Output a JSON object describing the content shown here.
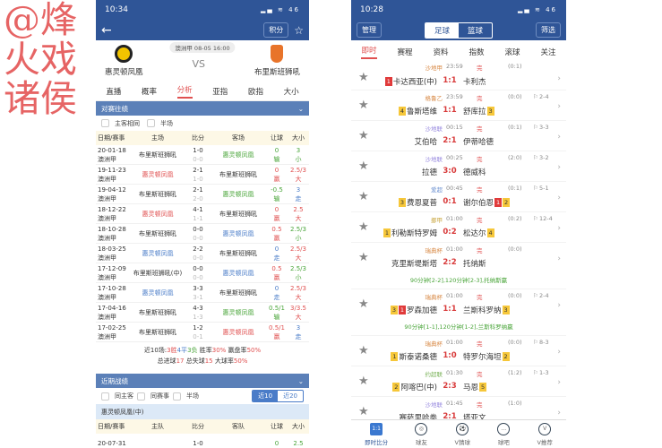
{
  "watermark": "@烽火戏诸侯",
  "left": {
    "status_time": "10:34",
    "status_icons": "▂▄ ≋ 46",
    "standings_btn": "积分",
    "match_info": "澳洲甲 08-05 16:00",
    "home_team": "惠灵顿凤凰",
    "away_team": "布里斯班狮吼",
    "vs": "VS",
    "tabs": [
      "直播",
      "概率",
      "分析",
      "亚指",
      "欧指",
      "大小"
    ],
    "active_tab": 2,
    "h2h": {
      "title": "对赛往绩",
      "filters": [
        "主客相同",
        "半场"
      ],
      "headers": [
        "日期/赛事",
        "主场",
        "比分",
        "客场",
        "让球",
        "大小"
      ],
      "rows": [
        {
          "date": "20-01-18",
          "league": "澳洲甲",
          "home": "布里斯班狮吼",
          "hc": "k",
          "score": "1-0",
          "half": "0-0",
          "away": "惠灵顿凤凰",
          "ac": "g",
          "hcp": "0",
          "hres": "输",
          "hcol": "g",
          "ou": "3",
          "ores": "小",
          "ocol": "g"
        },
        {
          "date": "19-11-23",
          "league": "澳洲甲",
          "home": "惠灵顿凤凰",
          "hc": "r",
          "score": "2-1",
          "half": "1-0",
          "away": "布里斯班狮吼",
          "ac": "k",
          "hcp": "0",
          "hres": "赢",
          "hcol": "r",
          "ou": "2.5/3",
          "ores": "大",
          "ocol": "r"
        },
        {
          "date": "19-04-12",
          "league": "澳洲甲",
          "home": "布里斯班狮吼",
          "hc": "k",
          "score": "2-1",
          "half": "2-0",
          "away": "惠灵顿凤凰",
          "ac": "g",
          "hcp": "-0.5",
          "hres": "输",
          "hcol": "g",
          "ou": "3",
          "ores": "走",
          "ocol": "b"
        },
        {
          "date": "18-12-22",
          "league": "澳洲甲",
          "home": "惠灵顿凤凰",
          "hc": "r",
          "score": "4-1",
          "half": "1-1",
          "away": "布里斯班狮吼",
          "ac": "k",
          "hcp": "0",
          "hres": "赢",
          "hcol": "r",
          "ou": "2.5",
          "ores": "大",
          "ocol": "r"
        },
        {
          "date": "18-10-28",
          "league": "澳洲甲",
          "home": "布里斯班狮吼",
          "hc": "k",
          "score": "0-0",
          "half": "0-0",
          "away": "惠灵顿凤凰",
          "ac": "b",
          "hcp": "0.5",
          "hres": "赢",
          "hcol": "r",
          "ou": "2.5/3",
          "ores": "小",
          "ocol": "g"
        },
        {
          "date": "18-03-25",
          "league": "澳洲甲",
          "home": "惠灵顿凤凰",
          "hc": "b",
          "score": "2-2",
          "half": "0-0",
          "away": "布里斯班狮吼",
          "ac": "k",
          "hcp": "0",
          "hres": "走",
          "hcol": "b",
          "ou": "2.5/3",
          "ores": "大",
          "ocol": "r"
        },
        {
          "date": "17-12-09",
          "league": "澳洲甲",
          "home": "布里斯班狮吼(中)",
          "hc": "k",
          "score": "0-0",
          "half": "0-0",
          "away": "惠灵顿凤凰",
          "ac": "b",
          "hcp": "0.5",
          "hres": "赢",
          "hcol": "r",
          "ou": "2.5/3",
          "ores": "小",
          "ocol": "g"
        },
        {
          "date": "17-10-28",
          "league": "澳洲甲",
          "home": "惠灵顿凤凰",
          "hc": "b",
          "score": "3-3",
          "half": "3-1",
          "away": "布里斯班狮吼",
          "ac": "k",
          "hcp": "0",
          "hres": "走",
          "hcol": "b",
          "ou": "2.5/3",
          "ores": "大",
          "ocol": "r"
        },
        {
          "date": "17-04-16",
          "league": "澳洲甲",
          "home": "布里斯班狮吼",
          "hc": "k",
          "score": "4-3",
          "half": "1-3",
          "away": "惠灵顿凤凰",
          "ac": "g",
          "hcp": "0.5/1",
          "hres": "输",
          "hcol": "g",
          "ou": "3/3.5",
          "ores": "大",
          "ocol": "r"
        },
        {
          "date": "17-02-25",
          "league": "澳洲甲",
          "home": "布里斯班狮吼",
          "hc": "k",
          "score": "1-2",
          "half": "0-1",
          "away": "惠灵顿凤凰",
          "ac": "r",
          "hcp": "0.5/1",
          "hres": "赢",
          "hcol": "r",
          "ou": "3",
          "ores": "走",
          "ocol": "b"
        }
      ],
      "summary": {
        "prefix": "近10场:",
        "wins": "3胜",
        "draws": "4平",
        "losses": "3负",
        "winrate_label": " 胜率",
        "winrate": "30%",
        "cover_label": " 赢盘率",
        "cover": "50%",
        "goals_label": "总进球",
        "goals": "17",
        "conceded_label": " 总失球",
        "conceded": "15",
        "over_label": " 大球率",
        "over": "50%"
      }
    },
    "recent": {
      "title": "近期战绩",
      "filters": [
        "同主客",
        "同赛事",
        "半场"
      ],
      "seg": [
        "近10",
        "近20"
      ],
      "team_label": "惠灵顿凤凰(中)",
      "headers": [
        "日期/赛事",
        "主队",
        "比分",
        "客队",
        "让球",
        "大小"
      ],
      "first_row": {
        "date": "20-07-31",
        "score": "1-0",
        "hcp": "0",
        "ou": "2.5"
      }
    }
  },
  "right": {
    "status_time": "10:28",
    "status_icons": "▂▄ ≋ 46",
    "manage": "管理",
    "sports": [
      "足球",
      "篮球"
    ],
    "filter": "筛选",
    "tabs": [
      "即时",
      "赛程",
      "资料",
      "指数",
      "滚球",
      "关注"
    ],
    "active_tab": 0,
    "status_done": "完",
    "matches": [
      {
        "league": "沙地甲",
        "lc": "#d98c4a",
        "time": "23:59",
        "ht": "(0:1)",
        "corner": "",
        "home": "卡达西亚(中)",
        "hb": [
          [
            "1",
            "rd"
          ]
        ],
        "score": "1:1",
        "away": "卡利杰",
        "ab": []
      },
      {
        "league": "格鲁乙",
        "lc": "#d98c4a",
        "time": "23:59",
        "ht": "(0:0)",
        "corner": "2-4",
        "home": "鲁斯塔维",
        "hb": [
          [
            "4",
            "y"
          ]
        ],
        "score": "1:1",
        "away": "舒库拉",
        "ab": [
          [
            "3",
            "y"
          ]
        ]
      },
      {
        "league": "沙地联",
        "lc": "#9b8de0",
        "time": "00:15",
        "ht": "(0:1)",
        "corner": "3-3",
        "home": "艾伯哈",
        "hb": [],
        "score": "2:1",
        "away": "伊蒂哈德",
        "ab": []
      },
      {
        "league": "沙地联",
        "lc": "#9b8de0",
        "time": "00:25",
        "ht": "(2:0)",
        "corner": "3-2",
        "home": "拉德",
        "hb": [],
        "score": "3:0",
        "away": "德威科",
        "ab": []
      },
      {
        "league": "爱超",
        "lc": "#6a8fd0",
        "time": "00:45",
        "ht": "(0:1)",
        "corner": "5-1",
        "home": "费恩夏普",
        "hb": [
          [
            "3",
            "y"
          ]
        ],
        "score": "0:1",
        "away": "谢尔伯恩",
        "ab": [
          [
            "1",
            "rd"
          ],
          [
            "2",
            "y"
          ]
        ]
      },
      {
        "league": "挪甲",
        "lc": "#c9a640",
        "time": "01:00",
        "ht": "(0:2)",
        "corner": "12-4",
        "home": "利勒斯特罗姆",
        "hb": [
          [
            "1",
            "y"
          ]
        ],
        "score": "0:2",
        "away": "松达尔",
        "ab": [
          [
            "4",
            "y"
          ]
        ]
      },
      {
        "league": "瑞典杯",
        "lc": "#d98c4a",
        "time": "01:00",
        "ht": "(0:0)",
        "corner": "",
        "home": "克里斯堤斯塔",
        "hb": [],
        "score": "2:2",
        "away": "托纳斯",
        "ab": [],
        "extra": "90分钟[2-2],120分钟[2-3],托纳斯赢"
      },
      {
        "league": "瑞典杯",
        "lc": "#d98c4a",
        "time": "01:00",
        "ht": "(0:0)",
        "corner": "2-4",
        "home": "罗森加德",
        "hb": [
          [
            "3",
            "y"
          ],
          [
            "1",
            "rd"
          ]
        ],
        "score": "1:1",
        "away": "兰斯科罗纳",
        "ab": [
          [
            "3",
            "y"
          ]
        ],
        "extra": "90分钟[1-1],120分钟[1-2],兰斯科罗纳赢"
      },
      {
        "league": "瑞典杯",
        "lc": "#d98c4a",
        "time": "01:00",
        "ht": "(0:0)",
        "corner": "8-3",
        "home": "斯泰诺桑德",
        "hb": [
          [
            "1",
            "y"
          ]
        ],
        "score": "1:0",
        "away": "特罗尔海坦",
        "ab": [
          [
            "2",
            "y"
          ]
        ]
      },
      {
        "league": "约超联",
        "lc": "#7bb35a",
        "time": "01:30",
        "ht": "(1:2)",
        "corner": "1-3",
        "home": "阿喀巴(中)",
        "hb": [
          [
            "2",
            "y"
          ]
        ],
        "score": "2:3",
        "away": "马恩",
        "ab": [
          [
            "5",
            "y"
          ]
        ]
      },
      {
        "league": "沙地联",
        "lc": "#9b8de0",
        "time": "01:45",
        "ht": "(1:0)",
        "corner": "",
        "home": "赛萨里哈拳",
        "hb": [],
        "score": "2:1",
        "away": "塔亚文",
        "ab": []
      }
    ],
    "nav": [
      {
        "label": "即时比分",
        "icon": "1:1"
      },
      {
        "label": "球友",
        "icon": "◎"
      },
      {
        "label": "V猜球",
        "icon": "⚽"
      },
      {
        "label": "球吧",
        "icon": "…"
      },
      {
        "label": "V推荐",
        "icon": "V"
      }
    ]
  }
}
